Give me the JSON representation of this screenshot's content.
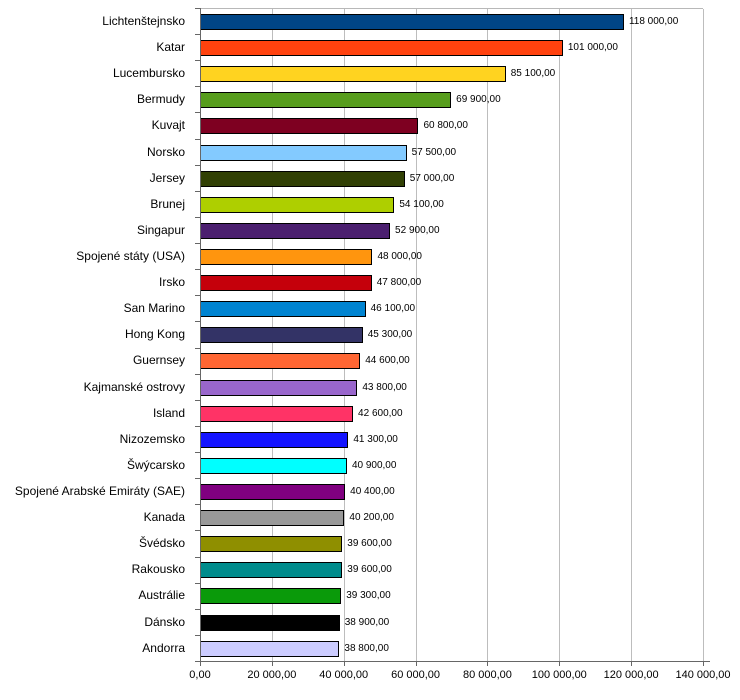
{
  "chart_data": {
    "type": "bar",
    "orientation": "horizontal",
    "title": "",
    "xlabel": "",
    "ylabel": "",
    "xlim": [
      0,
      140000
    ],
    "grid": "vertical",
    "legend": "none",
    "categories": [
      "Lichtenštejnsko",
      "Katar",
      "Lucembursko",
      "Bermudy",
      "Kuvajt",
      "Norsko",
      "Jersey",
      "Brunej",
      "Singapur",
      "Spojené státy (USA)",
      "Irsko",
      "San Marino",
      "Hong Kong",
      "Guernsey",
      "Kajmanské ostrovy",
      "Island",
      "Nizozemsko",
      "Šwýcarsko",
      "Spojené Arabské Emiráty (SAE)",
      "Kanada",
      "Švédsko",
      "Rakousko",
      "Austrálie",
      "Dánsko",
      "Andorra"
    ],
    "values": [
      118000,
      101000,
      85100,
      69900,
      60800,
      57500,
      57000,
      54100,
      52900,
      48000,
      47800,
      46100,
      45300,
      44600,
      43800,
      42600,
      41300,
      40900,
      40400,
      40200,
      39600,
      39600,
      39300,
      38900,
      38800
    ],
    "value_labels": [
      "118 000,00",
      "101 000,00",
      "85 100,00",
      "69 900,00",
      "60 800,00",
      "57 500,00",
      "57 000,00",
      "54 100,00",
      "52 900,00",
      "48 000,00",
      "47 800,00",
      "46 100,00",
      "45 300,00",
      "44 600,00",
      "43 800,00",
      "42 600,00",
      "41 300,00",
      "40 900,00",
      "40 400,00",
      "40 200,00",
      "39 600,00",
      "39 600,00",
      "39 300,00",
      "38 900,00",
      "38 800,00"
    ],
    "bar_colors": [
      "#004586",
      "#FF420E",
      "#FFD320",
      "#579D1C",
      "#7E0021",
      "#83CAFF",
      "#314004",
      "#AECF00",
      "#4B1F6F",
      "#FF950E",
      "#C5000B",
      "#0084D1",
      "#333366",
      "#FF6633",
      "#9966CC",
      "#FF3366",
      "#1414FF",
      "#00FFFF",
      "#800080",
      "#999999",
      "#8F8F00",
      "#008C8C",
      "#0A9A0A",
      "#000000",
      "#CCCCFF"
    ],
    "x_tick_values": [
      0,
      20000,
      40000,
      60000,
      80000,
      100000,
      120000,
      140000
    ],
    "x_tick_labels": [
      "0,00",
      "20 000,00",
      "40 000,00",
      "60 000,00",
      "80 000,00",
      "100 000,00",
      "120 000,00",
      "140 000,00"
    ]
  },
  "colors": {
    "background": "#FFFFFF",
    "gridline": "#BDBDBD",
    "axis": "#666666",
    "bar_border": "#000000",
    "text": "#000000"
  }
}
